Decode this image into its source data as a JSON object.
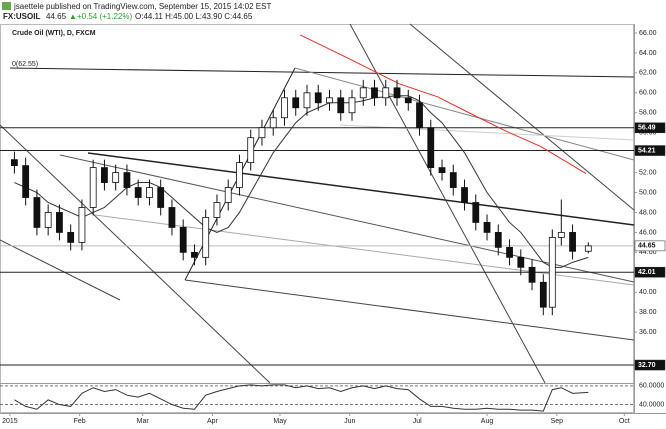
{
  "header": {
    "author_line": "jsaettele published on TradingView.com, September 15, 2015 14:02 EST",
    "symbol": "FX:USOIL",
    "price": "44.65",
    "arrow": "▲",
    "change": "+0.54 (+1.22%)",
    "ohlc": "O:44.11 H:45.00 L:43.90 C:44.65"
  },
  "chart_data": {
    "type": "candlestick",
    "title": "Crude Oil (WTI), D, FXCM",
    "x": [
      2,
      7,
      12,
      17,
      22,
      27,
      32,
      37,
      42,
      47,
      52,
      57,
      62,
      67,
      72,
      77,
      82,
      87,
      92,
      97,
      102,
      107,
      112,
      117,
      122,
      127,
      132,
      137,
      142,
      147,
      152,
      157,
      162,
      167,
      172,
      177,
      182,
      187,
      192,
      197,
      202,
      207,
      212,
      217,
      222,
      227,
      232,
      237,
      241,
      245,
      250,
      257
    ],
    "open": [
      53.3,
      52.7,
      49.5,
      46.5,
      48.0,
      46.0,
      45.0,
      48.5,
      52.5,
      51.0,
      52.0,
      50.5,
      49.5,
      50.5,
      48.5,
      46.5,
      44.0,
      43.5,
      47.5,
      49.0,
      50.5,
      53.0,
      55.5,
      56.5,
      57.5,
      59.5,
      58.5,
      60.0,
      59.0,
      59.5,
      58.0,
      59.5,
      60.5,
      59.5,
      60.5,
      59.5,
      59.0,
      56.5,
      52.5,
      52.0,
      50.5,
      49.0,
      47.0,
      46.0,
      44.5,
      43.5,
      42.5,
      41.0,
      38.5,
      45.5,
      46.0,
      44.11
    ],
    "high": [
      54.1,
      53.5,
      50.3,
      48.8,
      48.8,
      46.8,
      49.3,
      53.3,
      53.3,
      52.8,
      52.8,
      51.3,
      51.3,
      51.3,
      49.3,
      47.3,
      44.8,
      48.3,
      49.8,
      51.3,
      53.8,
      56.3,
      57.3,
      58.3,
      60.3,
      60.3,
      60.8,
      60.8,
      60.3,
      60.3,
      60.3,
      61.3,
      61.3,
      61.3,
      61.3,
      60.3,
      59.8,
      57.3,
      53.3,
      52.8,
      51.3,
      49.8,
      47.8,
      46.8,
      45.3,
      44.3,
      43.3,
      41.8,
      46.3,
      49.3,
      46.8,
      45.0
    ],
    "low": [
      51.9,
      48.7,
      45.7,
      45.7,
      45.2,
      44.2,
      44.2,
      47.7,
      50.2,
      50.2,
      49.7,
      48.7,
      48.7,
      47.7,
      45.7,
      43.2,
      42.7,
      42.7,
      46.7,
      48.2,
      49.7,
      52.2,
      54.7,
      55.7,
      56.7,
      57.7,
      57.7,
      58.2,
      58.2,
      57.2,
      57.2,
      58.7,
      58.7,
      58.7,
      58.7,
      58.2,
      55.7,
      51.7,
      51.2,
      49.7,
      48.2,
      46.2,
      45.2,
      43.7,
      42.7,
      41.7,
      40.2,
      37.7,
      37.7,
      44.7,
      43.3,
      43.9
    ],
    "close": [
      52.7,
      49.5,
      46.5,
      48.0,
      46.0,
      45.0,
      48.5,
      52.5,
      51.0,
      52.0,
      50.5,
      49.5,
      50.5,
      48.5,
      46.5,
      44.0,
      43.5,
      47.5,
      49.0,
      50.5,
      53.0,
      55.5,
      56.5,
      57.5,
      59.5,
      58.5,
      60.0,
      59.0,
      59.5,
      58.0,
      59.5,
      60.5,
      59.5,
      60.5,
      59.5,
      59.0,
      56.5,
      52.5,
      52.0,
      50.5,
      49.0,
      47.0,
      46.0,
      44.5,
      43.5,
      42.5,
      41.0,
      38.5,
      45.5,
      46.0,
      44.11,
      44.65
    ],
    "series": [
      {
        "color": "#333333",
        "x": [
          2,
          7,
          12,
          17,
          22,
          27,
          32,
          37,
          42,
          47,
          52,
          57,
          62,
          67,
          72,
          77,
          82,
          87,
          92,
          97,
          102,
          107,
          112,
          117,
          122,
          127,
          132,
          137,
          142,
          147,
          152,
          157,
          162,
          167,
          172,
          177,
          182,
          187,
          192,
          197,
          202,
          207,
          212,
          217,
          222,
          227,
          232,
          237,
          241,
          245,
          250,
          257
        ],
        "values": [
          51,
          50.5,
          50,
          49,
          48.5,
          48,
          47.5,
          48,
          48.5,
          49.5,
          50.5,
          51,
          51,
          50.5,
          49.5,
          48.5,
          47.5,
          46.5,
          46,
          46.5,
          48,
          50,
          52,
          54,
          55.5,
          57,
          58,
          58.5,
          59,
          59,
          59,
          59.2,
          59.5,
          59.6,
          59.7,
          59.7,
          59.2,
          58,
          57,
          55.5,
          54,
          52,
          50,
          48.5,
          47,
          46,
          44.5,
          43,
          42.5,
          42.5,
          43,
          43.5
        ]
      },
      {
        "color": "#e0302a",
        "x": [
          129,
          150,
          173,
          190,
          204,
          220,
          236,
          256
        ],
        "values": [
          65.8,
          63.5,
          60.9,
          59.6,
          58.0,
          56.2,
          54.6,
          51.9
        ]
      }
    ],
    "levels": [
      {
        "value": 56.49,
        "color": "#111111"
      },
      {
        "value": 54.21,
        "color": "#111111"
      },
      {
        "value": 44.65,
        "color": "#ffffff"
      },
      {
        "value": 42.01,
        "color": "#111111"
      },
      {
        "value": 32.7,
        "label": "32.70",
        "color": "#111111"
      }
    ],
    "annotation": "0(62.55)",
    "xlim": [
      -4.4,
      277.3
    ],
    "ylim": [
      30.9,
      66.9
    ],
    "xticks": [
      {
        "value": 0,
        "label": "2015"
      },
      {
        "value": 31,
        "label": "Feb"
      },
      {
        "value": 59,
        "label": "Mar"
      },
      {
        "value": 90,
        "label": "Apr"
      },
      {
        "value": 120,
        "label": "May"
      },
      {
        "value": 151,
        "label": "Jun"
      },
      {
        "value": 181,
        "label": "Jul"
      },
      {
        "value": 212,
        "label": "Aug"
      },
      {
        "value": 243,
        "label": "Sep"
      },
      {
        "value": 273,
        "label": "Oct"
      }
    ],
    "yticks": [
      {
        "value": 36,
        "label": "36.00"
      },
      {
        "value": 38,
        "label": "38.00"
      },
      {
        "value": 40,
        "label": "40.00"
      },
      {
        "value": 42,
        "label": "42.00"
      },
      {
        "value": 44,
        "label": "44.00"
      },
      {
        "value": 46,
        "label": "46.00"
      },
      {
        "value": 48,
        "label": "48.00"
      },
      {
        "value": 50,
        "label": "50.00"
      },
      {
        "value": 52,
        "label": "52.00"
      },
      {
        "value": 54,
        "label": "54.00"
      },
      {
        "value": 56,
        "label": "56.00"
      },
      {
        "value": 58,
        "label": "58.00"
      },
      {
        "value": 60,
        "label": "60.00"
      },
      {
        "value": 62,
        "label": "62.00"
      },
      {
        "value": 64,
        "label": "64.00"
      },
      {
        "value": 66,
        "label": "66.00"
      }
    ],
    "rsi": {
      "color": "#333333",
      "ylim": [
        32,
        62
      ],
      "yticks": [
        {
          "value": 60,
          "label": "60.0000"
        },
        {
          "value": 40,
          "label": "40.0000"
        }
      ],
      "values": [
        45,
        38,
        35,
        45,
        40,
        38,
        52,
        58,
        54,
        56,
        50,
        48,
        52,
        46,
        40,
        36,
        35,
        50,
        54,
        57,
        60,
        61,
        60,
        61,
        61,
        58,
        60,
        57,
        58,
        54,
        58,
        60,
        57,
        60,
        57,
        56,
        46,
        38,
        38,
        36,
        35,
        35,
        36,
        35,
        35,
        34,
        34,
        33,
        56,
        58,
        52,
        53
      ]
    }
  }
}
